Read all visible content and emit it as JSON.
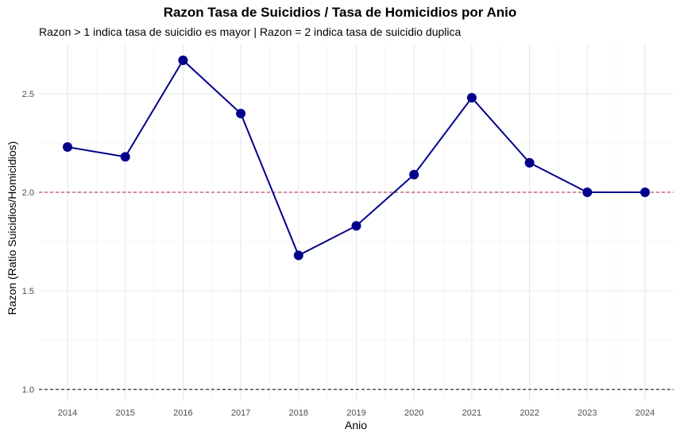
{
  "chart_data": {
    "type": "line",
    "title": "Razon Tasa de Suicidios / Tasa de Homicidios por Anio",
    "subtitle": "Razon > 1 indica tasa de suicidio es mayor | Razon = 2 indica tasa de suicidio duplica",
    "xlabel": "Anio",
    "ylabel": "Razon (Ratio Suicidios/Homicidios)",
    "categories": [
      "2014",
      "2015",
      "2016",
      "2017",
      "2018",
      "2019",
      "2020",
      "2021",
      "2022",
      "2023",
      "2024"
    ],
    "values": [
      2.23,
      2.18,
      2.67,
      2.4,
      1.68,
      1.83,
      2.09,
      2.48,
      2.15,
      2.0,
      2.0
    ],
    "ylim": [
      0.94,
      2.75
    ],
    "yticks": [
      1.0,
      1.5,
      2.0,
      2.5
    ],
    "ytick_labels": [
      "1.0",
      "1.5",
      "2.0",
      "2.5"
    ],
    "reference_lines": [
      {
        "value": 2.0,
        "color": "#b2182b",
        "style": "dashed"
      },
      {
        "value": 1.0,
        "color": "#000000",
        "style": "dashed"
      }
    ],
    "line_color": "#00008b",
    "point_color": "#00008b",
    "grid": true,
    "legend": "none"
  }
}
